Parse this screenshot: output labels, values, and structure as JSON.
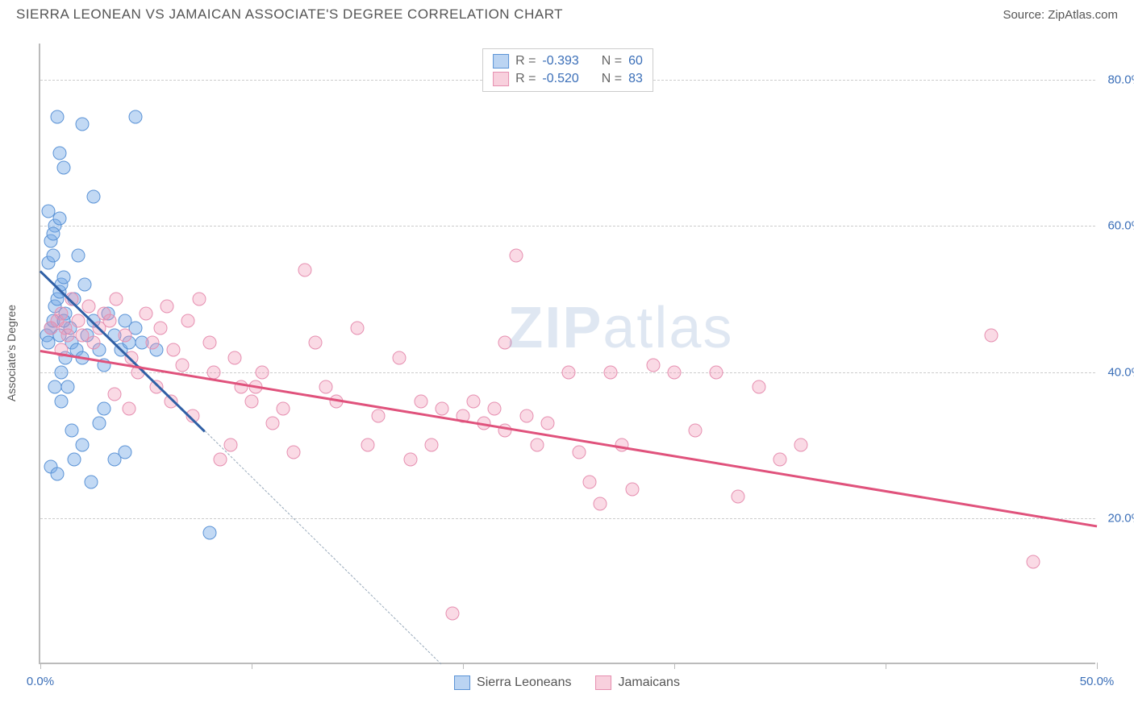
{
  "title": "SIERRA LEONEAN VS JAMAICAN ASSOCIATE'S DEGREE CORRELATION CHART",
  "source": "Source: ZipAtlas.com",
  "watermark_zip": "ZIP",
  "watermark_atlas": "atlas",
  "chart": {
    "type": "scatter",
    "ylabel": "Associate's Degree",
    "xlim": [
      0,
      50
    ],
    "ylim": [
      0,
      85
    ],
    "yticks": [
      20,
      40,
      60,
      80
    ],
    "ytick_labels": [
      "20.0%",
      "40.0%",
      "60.0%",
      "80.0%"
    ],
    "xticks": [
      0,
      10,
      20,
      30,
      40,
      50
    ],
    "xtick_labels_shown": {
      "0": "0.0%",
      "50": "50.0%"
    },
    "grid_color": "#cccccc",
    "axis_color": "#bbbbbb",
    "background_color": "#ffffff",
    "tick_label_color": "#3b6fb8",
    "tick_fontsize": 15,
    "label_fontsize": 14,
    "title_fontsize": 17,
    "title_color": "#555555",
    "marker_radius": 8.5,
    "series": [
      {
        "name": "Sierra Leoneans",
        "color_fill": "rgba(120,170,230,0.45)",
        "color_stroke": "#5b93d6",
        "trend_color": "#2f5fa5",
        "R": "-0.393",
        "N": "60",
        "trend": {
          "x1": 0,
          "y1": 54,
          "x2": 7.8,
          "y2": 32,
          "dash_x2": 19,
          "dash_y2": 0
        },
        "points": [
          [
            0.3,
            45
          ],
          [
            0.5,
            46
          ],
          [
            0.6,
            47
          ],
          [
            0.7,
            49
          ],
          [
            0.8,
            50
          ],
          [
            0.9,
            51
          ],
          [
            1.0,
            52
          ],
          [
            1.1,
            53
          ],
          [
            0.5,
            58
          ],
          [
            0.7,
            60
          ],
          [
            0.9,
            61
          ],
          [
            0.4,
            55
          ],
          [
            0.6,
            56
          ],
          [
            1.2,
            48
          ],
          [
            1.4,
            46
          ],
          [
            1.5,
            44
          ],
          [
            1.7,
            43
          ],
          [
            2.0,
            42
          ],
          [
            2.2,
            45
          ],
          [
            2.5,
            47
          ],
          [
            2.8,
            43
          ],
          [
            3.0,
            41
          ],
          [
            1.0,
            40
          ],
          [
            1.3,
            38
          ],
          [
            0.8,
            75
          ],
          [
            2.0,
            74
          ],
          [
            4.5,
            75
          ],
          [
            0.9,
            70
          ],
          [
            1.1,
            68
          ],
          [
            2.5,
            64
          ],
          [
            0.4,
            62
          ],
          [
            0.6,
            59
          ],
          [
            1.8,
            56
          ],
          [
            3.2,
            48
          ],
          [
            3.5,
            45
          ],
          [
            3.8,
            43
          ],
          [
            4.0,
            47
          ],
          [
            4.2,
            44
          ],
          [
            4.5,
            46
          ],
          [
            4.8,
            44
          ],
          [
            1.5,
            32
          ],
          [
            2.0,
            30
          ],
          [
            2.8,
            33
          ],
          [
            3.5,
            28
          ],
          [
            4.0,
            29
          ],
          [
            1.0,
            36
          ],
          [
            0.7,
            38
          ],
          [
            1.2,
            42
          ],
          [
            0.5,
            27
          ],
          [
            0.8,
            26
          ],
          [
            1.6,
            28
          ],
          [
            2.4,
            25
          ],
          [
            3.0,
            35
          ],
          [
            8.0,
            18
          ],
          [
            0.4,
            44
          ],
          [
            0.9,
            45
          ],
          [
            1.1,
            47
          ],
          [
            1.6,
            50
          ],
          [
            2.1,
            52
          ],
          [
            5.5,
            43
          ]
        ]
      },
      {
        "name": "Jamaicans",
        "color_fill": "rgba(240,150,180,0.35)",
        "color_stroke": "#e68fb0",
        "trend_color": "#e0527c",
        "R": "-0.520",
        "N": "83",
        "trend": {
          "x1": 0,
          "y1": 43,
          "x2": 50,
          "y2": 19
        },
        "points": [
          [
            0.5,
            46
          ],
          [
            0.8,
            47
          ],
          [
            1.0,
            48
          ],
          [
            1.2,
            46
          ],
          [
            1.5,
            50
          ],
          [
            1.8,
            47
          ],
          [
            2.0,
            45
          ],
          [
            2.3,
            49
          ],
          [
            2.5,
            44
          ],
          [
            2.8,
            46
          ],
          [
            3.0,
            48
          ],
          [
            3.3,
            47
          ],
          [
            3.6,
            50
          ],
          [
            4.0,
            45
          ],
          [
            4.3,
            42
          ],
          [
            4.6,
            40
          ],
          [
            5.0,
            48
          ],
          [
            5.3,
            44
          ],
          [
            5.7,
            46
          ],
          [
            6.0,
            49
          ],
          [
            6.3,
            43
          ],
          [
            6.7,
            41
          ],
          [
            7.0,
            47
          ],
          [
            7.5,
            50
          ],
          [
            8.0,
            44
          ],
          [
            8.5,
            28
          ],
          [
            9.0,
            30
          ],
          [
            9.5,
            38
          ],
          [
            10.0,
            36
          ],
          [
            10.5,
            40
          ],
          [
            11.0,
            33
          ],
          [
            11.5,
            35
          ],
          [
            12.0,
            29
          ],
          [
            12.5,
            54
          ],
          [
            13.0,
            44
          ],
          [
            13.5,
            38
          ],
          [
            14.0,
            36
          ],
          [
            15.0,
            46
          ],
          [
            15.5,
            30
          ],
          [
            16.0,
            34
          ],
          [
            17.0,
            42
          ],
          [
            17.5,
            28
          ],
          [
            18.0,
            36
          ],
          [
            18.5,
            30
          ],
          [
            19.0,
            35
          ],
          [
            19.5,
            7
          ],
          [
            20.0,
            34
          ],
          [
            20.5,
            36
          ],
          [
            21.0,
            33
          ],
          [
            21.5,
            35
          ],
          [
            22.0,
            32
          ],
          [
            22.5,
            56
          ],
          [
            23.0,
            34
          ],
          [
            23.5,
            30
          ],
          [
            24.0,
            33
          ],
          [
            25.0,
            40
          ],
          [
            25.5,
            29
          ],
          [
            26.0,
            25
          ],
          [
            26.5,
            22
          ],
          [
            27.0,
            40
          ],
          [
            27.5,
            30
          ],
          [
            28.0,
            24
          ],
          [
            29.0,
            41
          ],
          [
            30.0,
            40
          ],
          [
            31.0,
            32
          ],
          [
            32.0,
            40
          ],
          [
            33.0,
            23
          ],
          [
            34.0,
            38
          ],
          [
            35.0,
            28
          ],
          [
            36.0,
            30
          ],
          [
            3.5,
            37
          ],
          [
            4.2,
            35
          ],
          [
            5.5,
            38
          ],
          [
            6.2,
            36
          ],
          [
            7.2,
            34
          ],
          [
            8.2,
            40
          ],
          [
            9.2,
            42
          ],
          [
            10.2,
            38
          ],
          [
            22.0,
            44
          ],
          [
            45.0,
            45
          ],
          [
            47.0,
            14
          ],
          [
            1.0,
            43
          ],
          [
            1.3,
            45
          ]
        ]
      }
    ],
    "legend_stats": [
      {
        "swatch": "blue",
        "R_label": "R =",
        "R_val": "-0.393",
        "N_label": "N =",
        "N_val": "60"
      },
      {
        "swatch": "pink",
        "R_label": "R =",
        "R_val": "-0.520",
        "N_label": "N =",
        "N_val": "83"
      }
    ],
    "legend_bottom": [
      {
        "swatch": "blue",
        "label": "Sierra Leoneans"
      },
      {
        "swatch": "pink",
        "label": "Jamaicans"
      }
    ]
  }
}
